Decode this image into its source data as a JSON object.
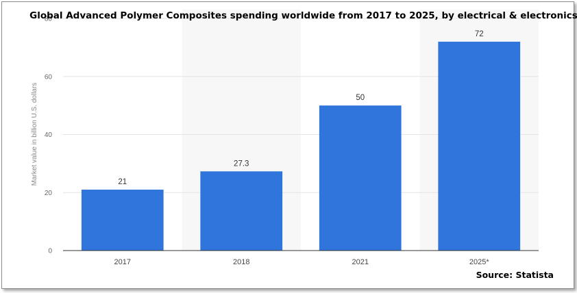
{
  "chart_data": {
    "type": "bar",
    "title": "Global Advanced Polymer Composites spending worldwide from 2017 to 2025, by electrical & electronics",
    "ylabel": "Market value in billion U.S. dollars",
    "xlabel": "",
    "categories": [
      "2017",
      "2018",
      "2021",
      "2025*"
    ],
    "values": [
      21,
      27.3,
      50,
      72
    ],
    "value_labels": [
      "21",
      "27.3",
      "50",
      "72"
    ],
    "ylim": [
      0,
      80
    ],
    "yticks": [
      0,
      20,
      40,
      60,
      80
    ],
    "grid": true,
    "legend": "none",
    "bar_color": "#2f75dc",
    "source": "Source: Statista"
  }
}
